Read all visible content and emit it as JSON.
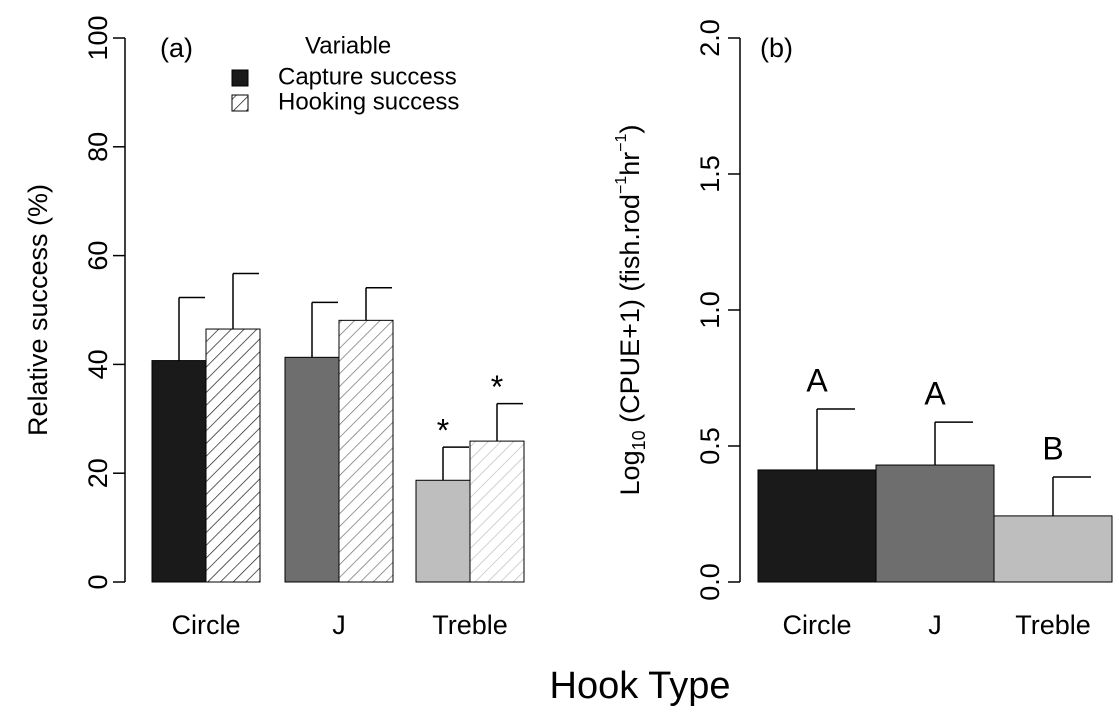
{
  "chart_data": [
    {
      "type": "bar",
      "panel_label": "(a)",
      "ylabel": "Relative success (%)",
      "categories": [
        "Circle",
        "J",
        "Treble"
      ],
      "ylim": [
        0,
        100
      ],
      "yticks": [
        0,
        20,
        40,
        60,
        80,
        100
      ],
      "legend_title": "Variable",
      "series": [
        {
          "name": "Capture success",
          "color": "#1a1a1a",
          "colors": [
            "#1a1a1a",
            "#6e6e6e",
            "#bebebe"
          ],
          "hatched": false,
          "values": [
            40.7,
            41.3,
            18.7
          ],
          "errors": [
            11.6,
            10.1,
            6.1
          ],
          "markers": [
            null,
            null,
            "*"
          ]
        },
        {
          "name": "Hooking success",
          "color": "#1a1a1a",
          "colors": [
            "#1a1a1a",
            "#6e6e6e",
            "#bebebe"
          ],
          "hatched": true,
          "values": [
            46.5,
            48.1,
            25.9
          ],
          "errors": [
            10.2,
            6.0,
            6.9
          ],
          "markers": [
            null,
            null,
            "*"
          ]
        }
      ]
    },
    {
      "type": "bar",
      "panel_label": "(b)",
      "ylabel_parts": [
        "Log",
        "10",
        " (CPUE+1) (fish.rod",
        "−1",
        "hr",
        "−1",
        ")"
      ],
      "categories": [
        "Circle",
        "J",
        "Treble"
      ],
      "ylim": [
        0,
        2
      ],
      "yticks": [
        {
          "value": 0,
          "label": "0.0"
        },
        0.5,
        {
          "value": 1,
          "label": "1.0"
        },
        1.5,
        {
          "value": 2,
          "label": "2.0"
        }
      ],
      "series": [
        {
          "colors": [
            "#1a1a1a",
            "#6e6e6e",
            "#bebebe"
          ],
          "hatched": false,
          "values": [
            0.412,
            0.43,
            0.243
          ],
          "errors": [
            0.224,
            0.158,
            0.143
          ],
          "markers": [
            "A",
            "A",
            "B"
          ]
        }
      ]
    }
  ],
  "xlabel": "Hook Type"
}
